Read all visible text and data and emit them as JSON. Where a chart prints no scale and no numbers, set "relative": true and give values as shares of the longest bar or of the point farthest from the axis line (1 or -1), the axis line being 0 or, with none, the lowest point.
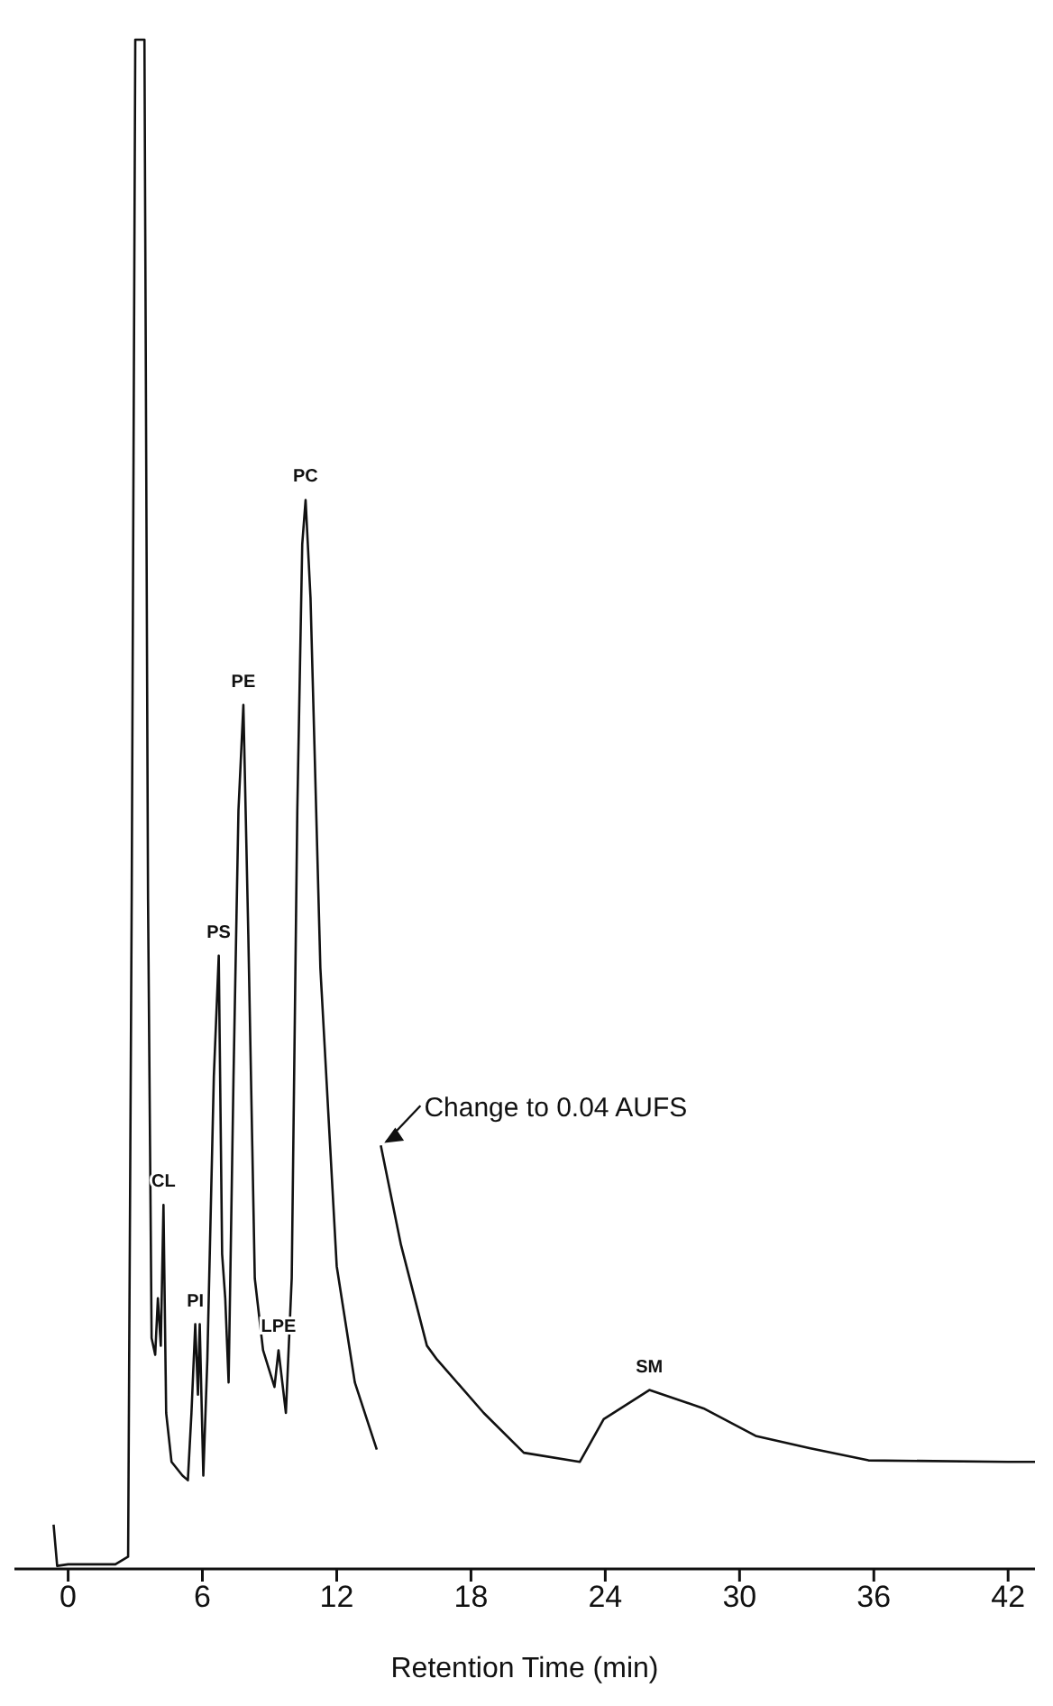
{
  "chart_data": {
    "type": "line",
    "relative": true,
    "xlabel": "Retention Time (min)",
    "xlim": [
      -2.4,
      43.2
    ],
    "xticks": [
      0,
      6,
      12,
      18,
      24,
      30,
      36,
      42
    ],
    "x": [
      -0.65,
      -0.49,
      0,
      2.11,
      2.68,
      2.84,
      3.0,
      3.41,
      3.57,
      3.73,
      3.89,
      4.01,
      4.14,
      4.26,
      4.38,
      4.62,
      5.11,
      5.35,
      5.51,
      5.68,
      5.8,
      5.88,
      6.04,
      6.22,
      6.51,
      6.73,
      6.88,
      7.02,
      7.17,
      7.39,
      7.61,
      7.83,
      8.05,
      8.34,
      8.71,
      9.22,
      9.4,
      9.73,
      9.99,
      10.24,
      10.46,
      10.61,
      10.83,
      11.27,
      12.0,
      12.81,
      13.79,
      13.88,
      13.97,
      14.87,
      16.03,
      16.48,
      18.57,
      20.36,
      22.86,
      23.93,
      25.97,
      28.39,
      30.72,
      33.12,
      35.76,
      42,
      43.2
    ],
    "series": [
      {
        "color": "#111111",
        "values": [
          0.029,
          0.002,
          0.003,
          0.003,
          0.008,
          0.438,
          1.0,
          1.0,
          0.438,
          0.151,
          0.14,
          0.177,
          0.146,
          0.238,
          0.102,
          0.07,
          0.061,
          0.058,
          0.102,
          0.16,
          0.114,
          0.16,
          0.061,
          0.137,
          0.322,
          0.401,
          0.206,
          0.177,
          0.122,
          0.322,
          0.496,
          0.565,
          0.415,
          0.19,
          0.143,
          0.119,
          0.143,
          0.102,
          0.19,
          0.496,
          0.67,
          0.699,
          0.635,
          0.393,
          0.198,
          0.122,
          0.078,
          null,
          0.277,
          0.212,
          0.146,
          0.137,
          0.102,
          0.076,
          0.07,
          0.098,
          0.117,
          0.105,
          0.087,
          0.079,
          0.071,
          0.07,
          0.07
        ]
      }
    ],
    "annotations": [
      {
        "text": "CL",
        "x": 4.26,
        "y": 0.238
      },
      {
        "text": "PI",
        "x": 5.68,
        "y": 0.16
      },
      {
        "text": "PS",
        "x": 6.73,
        "y": 0.401
      },
      {
        "text": "PE",
        "x": 7.83,
        "y": 0.565
      },
      {
        "text": "LPE",
        "x": 9.4,
        "y": 0.143
      },
      {
        "text": "PC",
        "x": 10.61,
        "y": 0.699
      },
      {
        "text": "SM",
        "x": 25.97,
        "y": 0.117
      },
      {
        "text": "Change to 0.04 AUFS",
        "x": 13.97,
        "y": 0.277
      }
    ],
    "grid": false,
    "legend": false,
    "marker": "none",
    "line_style": "solid"
  }
}
